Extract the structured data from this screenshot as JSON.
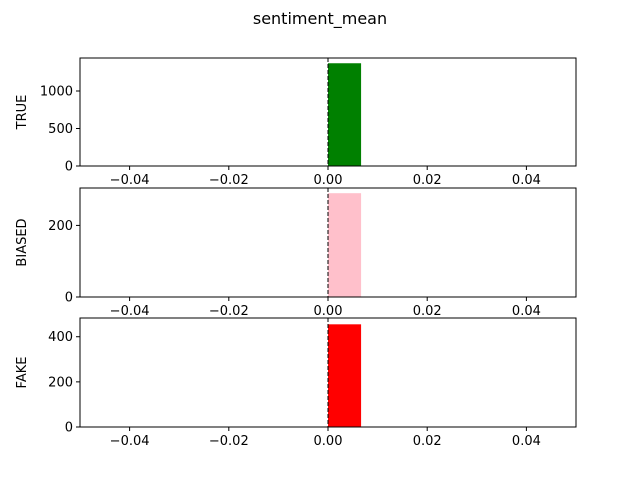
{
  "chart_data": [
    {
      "type": "bar",
      "title": "sentiment_mean",
      "ylabel": "TRUE",
      "x": [
        0.0
      ],
      "bin_width": 0.00667,
      "values": [
        1370
      ],
      "color": "#008000",
      "xlim": [
        -0.05,
        0.05
      ],
      "ylim": [
        0,
        1440
      ],
      "xticks": [
        -0.04,
        -0.02,
        0.0,
        0.02,
        0.04
      ],
      "xtick_labels": [
        "−0.04",
        "−0.02",
        "0.00",
        "0.02",
        "0.04"
      ],
      "yticks": [
        0,
        500,
        1000
      ],
      "ytick_labels": [
        "0",
        "500",
        "1000"
      ],
      "vline": 0.0
    },
    {
      "type": "bar",
      "ylabel": "BIASED",
      "x": [
        0.0
      ],
      "bin_width": 0.00667,
      "values": [
        290
      ],
      "color": "#ffc0cb",
      "xlim": [
        -0.05,
        0.05
      ],
      "ylim": [
        0,
        304.5
      ],
      "xticks": [
        -0.04,
        -0.02,
        0.0,
        0.02,
        0.04
      ],
      "xtick_labels": [
        "−0.04",
        "−0.02",
        "0.00",
        "0.02",
        "0.04"
      ],
      "yticks": [
        0,
        200
      ],
      "ytick_labels": [
        "0",
        "200"
      ],
      "vline": 0.0
    },
    {
      "type": "bar",
      "ylabel": "FAKE",
      "x": [
        0.0
      ],
      "bin_width": 0.00667,
      "values": [
        455
      ],
      "color": "#ff0000",
      "xlim": [
        -0.05,
        0.05
      ],
      "ylim": [
        0,
        483
      ],
      "xticks": [
        -0.04,
        -0.02,
        0.0,
        0.02,
        0.04
      ],
      "xtick_labels": [
        "−0.04",
        "−0.02",
        "0.00",
        "0.02",
        "0.04"
      ],
      "yticks": [
        0,
        200,
        400
      ],
      "ytick_labels": [
        "0",
        "200",
        "400"
      ],
      "vline": 0.0
    }
  ]
}
